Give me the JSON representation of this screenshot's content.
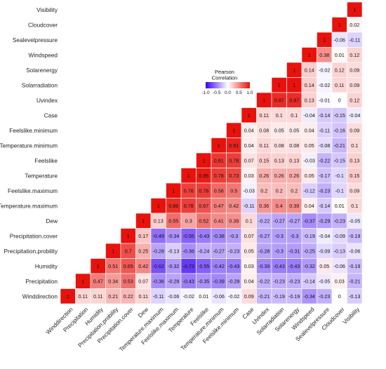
{
  "chart_data": {
    "type": "heatmap",
    "title": "",
    "variables": [
      "Winddirection",
      "Precipitation",
      "Humidity",
      "Precipitation.probility",
      "Precipitation.cover",
      "Dew",
      "Temperature.maximum",
      "Feelslike.maximum",
      "Temperature",
      "Feelslike",
      "Temperature.minimum",
      "Feelslike.minimum",
      "Case",
      "Uvindex",
      "Solarradiation",
      "Solarenergy",
      "Windspeed",
      "Sealevelpressure",
      "Cloudcover",
      "Visibility"
    ],
    "rows": [
      {
        "row": "Visibility",
        "values": [
          "1"
        ]
      },
      {
        "row": "Cloudcover",
        "values": [
          "1",
          "0.02"
        ]
      },
      {
        "row": "Sealevelpressure",
        "values": [
          "1",
          "-0.06",
          "-0.11"
        ]
      },
      {
        "row": "Windspeed",
        "values": [
          "1",
          "0.38",
          "0.01",
          "0.12"
        ]
      },
      {
        "row": "Solarenergy",
        "values": [
          "1",
          "0.14",
          "-0.02",
          "0.12",
          "0.09"
        ]
      },
      {
        "row": "Solarradiation",
        "values": [
          "1",
          "1",
          "0.14",
          "-0.02",
          "0.11",
          "0.09"
        ]
      },
      {
        "row": "Uvindex",
        "values": [
          "1",
          "0.87",
          "0.87",
          "0.13",
          "-0.01",
          "0",
          "0.12"
        ]
      },
      {
        "row": "Case",
        "values": [
          "1",
          "0.11",
          "0.1",
          "0.1",
          "-0.04",
          "-0.14",
          "-0.15",
          "-0.04"
        ]
      },
      {
        "row": "Feelslike.minimum",
        "values": [
          "1",
          "0.04",
          "0.08",
          "0.05",
          "0.05",
          "0.04",
          "-0.11",
          "-0.16",
          "0.09"
        ]
      },
      {
        "row": "Temperature.minimum",
        "values": [
          "1",
          "0.91",
          "0.04",
          "0.11",
          "0.08",
          "0.08",
          "0.05",
          "-0.08",
          "-0.21",
          "0.1"
        ]
      },
      {
        "row": "Feelslike",
        "values": [
          "1",
          "0.81",
          "0.78",
          "0.07",
          "0.15",
          "0.13",
          "0.13",
          "-0.03",
          "-0.22",
          "-0.15",
          "0.13"
        ]
      },
      {
        "row": "Temperature",
        "values": [
          "1",
          "0.95",
          "0.78",
          "0.73",
          "0.03",
          "0.26",
          "0.26",
          "0.26",
          "0.05",
          "-0.17",
          "-0.1",
          "0.15"
        ]
      },
      {
        "row": "Feelslike.maximum",
        "values": [
          "1",
          "0.76",
          "0.78",
          "0.56",
          "0.5",
          "-0.03",
          "0.2",
          "0.2",
          "0.2",
          "-0.12",
          "-0.23",
          "-0.1",
          "0.09"
        ]
      },
      {
        "row": "Temperature.maximum",
        "values": [
          "1",
          "0.86",
          "0.78",
          "0.67",
          "0.47",
          "0.42",
          "-0.11",
          "0.36",
          "0.4",
          "0.39",
          "0.04",
          "-0.14",
          "0.01",
          "0.1"
        ]
      },
      {
        "row": "Dew",
        "values": [
          "1",
          "0.13",
          "0.55",
          "0.3",
          "0.52",
          "0.41",
          "0.39",
          "0.1",
          "-0.22",
          "-0.27",
          "-0.27",
          "-0.37",
          "-0.29",
          "-0.23",
          "-0.05"
        ]
      },
      {
        "row": "Precipitation.cover",
        "values": [
          "1",
          "0.17",
          "-0.49",
          "-0.34",
          "-0.55",
          "-0.43",
          "-0.38",
          "-0.3",
          "0.07",
          "-0.27",
          "-0.3",
          "-0.3",
          "-0.19",
          "-0.04",
          "-0.09",
          "-0.19"
        ]
      },
      {
        "row": "Precipitation.probility",
        "values": [
          "1",
          "0.7",
          "0.25",
          "-0.28",
          "-0.13",
          "-0.36",
          "-0.24",
          "-0.27",
          "-0.23",
          "0.05",
          "-0.28",
          "-0.3",
          "-0.31",
          "-0.25",
          "-0.09",
          "-0.13",
          "-0.06"
        ]
      },
      {
        "row": "Humidity",
        "values": [
          "1",
          "0.51",
          "0.65",
          "0.42",
          "-0.62",
          "-0.32",
          "-0.73",
          "-0.55",
          "-0.42",
          "-0.43",
          "0.03",
          "-0.39",
          "-0.43",
          "-0.43",
          "-0.32",
          "0.05",
          "-0.06",
          "-0.19"
        ]
      },
      {
        "row": "Precipitation",
        "values": [
          "1",
          "0.47",
          "0.34",
          "0.53",
          "0.07",
          "-0.36",
          "-0.28",
          "-0.43",
          "-0.35",
          "-0.39",
          "-0.28",
          "0.04",
          "-0.22",
          "-0.23",
          "-0.23",
          "-0.14",
          "-0.05",
          "0.03",
          "-0.21"
        ]
      },
      {
        "row": "Winddirection",
        "values": [
          "1",
          "0.11",
          "0.11",
          "0.21",
          "0.22",
          "0.11",
          "-0.11",
          "-0.06",
          "-0.02",
          "0.01",
          "-0.06",
          "-0.02",
          "0.09",
          "-0.21",
          "-0.19",
          "-0.19",
          "-0.34",
          "-0.23",
          "0",
          "-0.13"
        ]
      }
    ],
    "legend": {
      "title_line1": "Pearson",
      "title_line2": "Correlation",
      "ticks": [
        "-1.0",
        "-0.5",
        "0.0",
        "0.5",
        "1.0"
      ],
      "placement": "top-center",
      "low_color": "#3b00f5",
      "mid_color": "#ffffff",
      "high_color": "#e8120c"
    },
    "grid": false
  }
}
